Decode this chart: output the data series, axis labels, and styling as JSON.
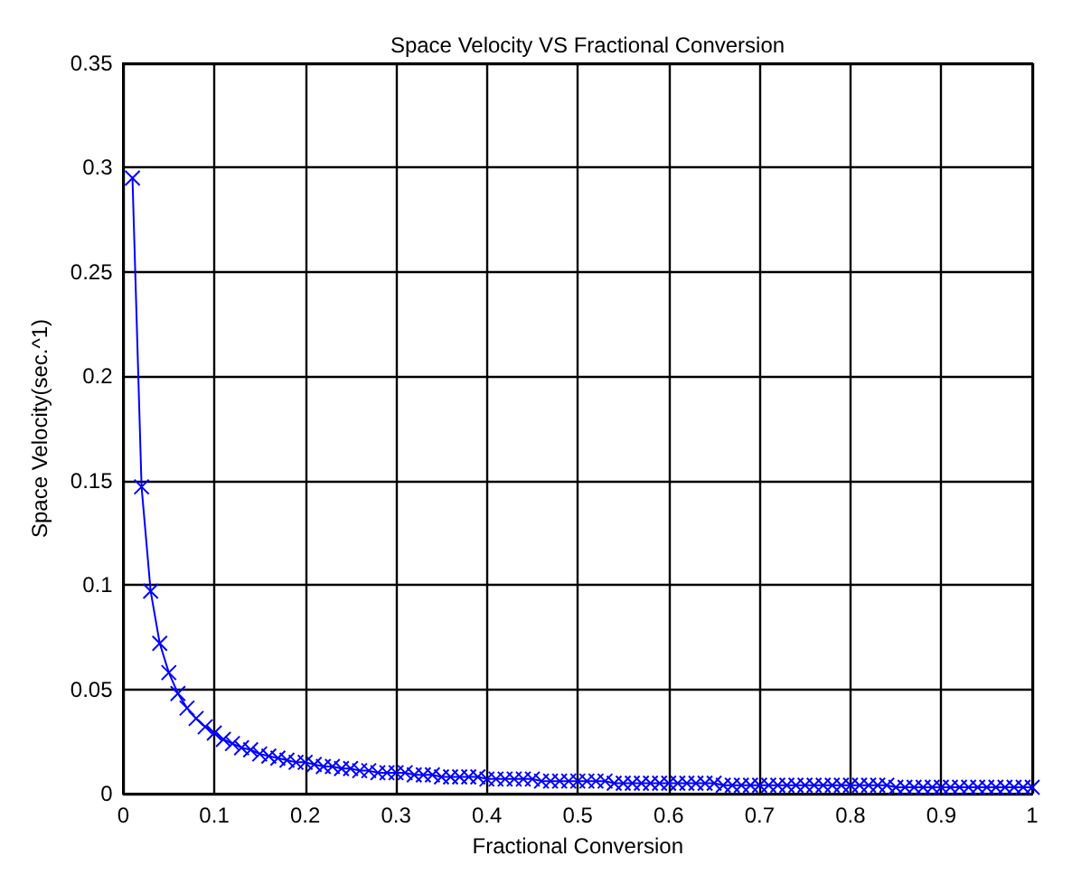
{
  "chart_data": {
    "type": "line",
    "title": "Space Velocity VS Fractional Conversion",
    "xlabel": "Fractional Conversion",
    "ylabel": "Space Velocity(sec.^1)",
    "x": [
      0.01,
      0.02,
      0.03,
      0.04,
      0.05,
      0.06,
      0.07,
      0.08,
      0.09,
      0.1,
      0.11,
      0.12,
      0.13,
      0.14,
      0.15,
      0.16,
      0.17,
      0.18,
      0.19,
      0.2,
      0.21,
      0.22,
      0.23,
      0.24,
      0.25,
      0.26,
      0.27,
      0.28,
      0.29,
      0.3,
      0.31,
      0.32,
      0.33,
      0.34,
      0.35,
      0.36,
      0.37,
      0.38,
      0.39,
      0.4,
      0.41,
      0.42,
      0.43,
      0.44,
      0.45,
      0.46,
      0.47,
      0.48,
      0.49,
      0.5,
      0.51,
      0.52,
      0.53,
      0.54,
      0.55,
      0.56,
      0.57,
      0.58,
      0.59,
      0.6,
      0.61,
      0.62,
      0.63,
      0.64,
      0.65,
      0.66,
      0.67,
      0.68,
      0.69,
      0.7,
      0.71,
      0.72,
      0.73,
      0.74,
      0.75,
      0.76,
      0.77,
      0.78,
      0.79,
      0.8,
      0.81,
      0.82,
      0.83,
      0.84,
      0.85,
      0.86,
      0.87,
      0.88,
      0.89,
      0.9,
      0.91,
      0.92,
      0.93,
      0.94,
      0.95,
      0.96,
      0.97,
      0.98,
      0.99,
      1
    ],
    "series": [
      {
        "color": "#0000ff",
        "values": [
          0.295,
          0.147,
          0.097,
          0.072,
          0.058,
          0.048,
          0.041,
          0.036,
          0.032,
          0.029,
          0.026,
          0.024,
          0.022,
          0.021,
          0.019,
          0.018,
          0.017,
          0.016,
          0.015,
          0.015,
          0.014,
          0.013,
          0.013,
          0.012,
          0.012,
          0.011,
          0.011,
          0.01,
          0.01,
          0.01,
          0.01,
          0.009,
          0.009,
          0.009,
          0.008,
          0.008,
          0.008,
          0.008,
          0.008,
          0.007,
          0.007,
          0.007,
          0.007,
          0.007,
          0.007,
          0.006,
          0.006,
          0.006,
          0.006,
          0.006,
          0.006,
          0.006,
          0.006,
          0.005,
          0.005,
          0.005,
          0.005,
          0.005,
          0.005,
          0.005,
          0.005,
          0.005,
          0.005,
          0.005,
          0.005,
          0.004,
          0.004,
          0.004,
          0.004,
          0.004,
          0.004,
          0.004,
          0.004,
          0.004,
          0.004,
          0.004,
          0.004,
          0.004,
          0.004,
          0.004,
          0.004,
          0.004,
          0.004,
          0.004,
          0.003,
          0.003,
          0.003,
          0.003,
          0.003,
          0.003,
          0.003,
          0.003,
          0.003,
          0.003,
          0.003,
          0.003,
          0.003,
          0.003,
          0.003,
          0.003
        ]
      }
    ],
    "xlim": [
      0,
      1
    ],
    "xticks": [
      0,
      0.1,
      0.2,
      0.3,
      0.4,
      0.5,
      0.6,
      0.7,
      0.8,
      0.9,
      1
    ],
    "ylim": [
      0,
      0.35
    ],
    "yticks": [
      0,
      0.05,
      0.1,
      0.15,
      0.2,
      0.25,
      0.3,
      0.35
    ],
    "grid": true,
    "marker": "cross",
    "line_style": "solid"
  }
}
